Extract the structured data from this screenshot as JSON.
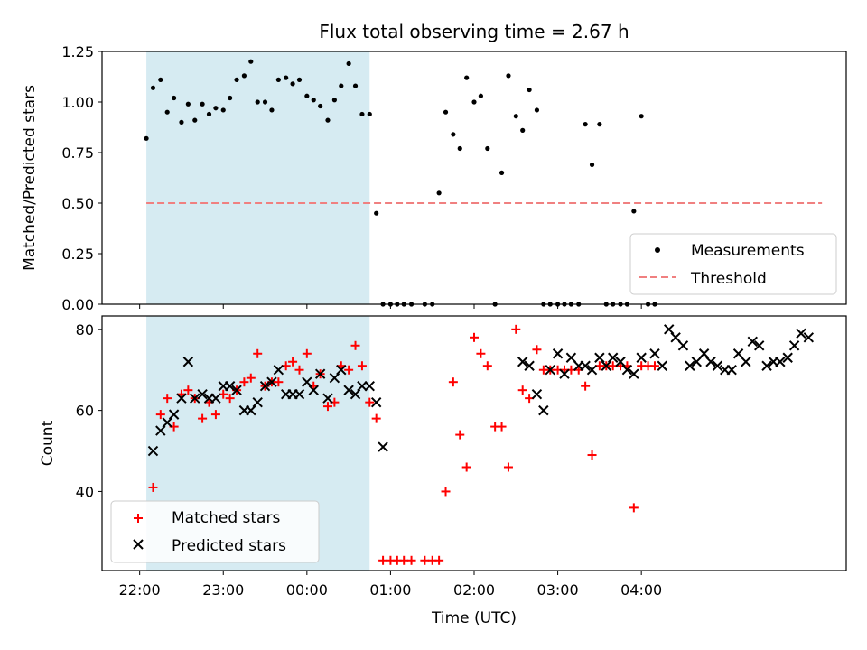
{
  "chart_data": [
    {
      "type": "scatter",
      "title": "Flux total observing time = 2.67 h",
      "xlabel": "",
      "ylabel": "Matched/Predicted stars",
      "ylim": [
        0,
        1.25
      ],
      "yticks": [
        "0.00",
        "0.25",
        "0.50",
        "0.75",
        "1.00",
        "1.25"
      ],
      "shaded_span_hours": [
        22.08,
        24.75
      ],
      "threshold": {
        "name": "Threshold",
        "value": 0.5,
        "x_range_hours": [
          22.08,
          30.16
        ],
        "color": "#f08080"
      },
      "legend": {
        "position": "lower-right",
        "entries": [
          "Measurements",
          "Threshold"
        ]
      },
      "series": [
        {
          "name": "Measurements",
          "color": "#000000",
          "marker": "dot",
          "x_hours": [
            22.08,
            22.16,
            22.25,
            22.33,
            22.41,
            22.5,
            22.58,
            22.66,
            22.75,
            22.83,
            22.91,
            23.0,
            23.08,
            23.16,
            23.25,
            23.33,
            23.41,
            23.5,
            23.58,
            23.66,
            23.75,
            23.83,
            23.91,
            24.0,
            24.08,
            24.16,
            24.25,
            24.33,
            24.41,
            24.5,
            24.58,
            24.66,
            24.75,
            24.83,
            24.91,
            25.0,
            25.08,
            25.16,
            25.25,
            25.41,
            25.5,
            25.58,
            25.66,
            25.75,
            25.83,
            25.91,
            26.0,
            26.08,
            26.16,
            26.25,
            26.33,
            26.41,
            26.5,
            26.58,
            26.66,
            26.75,
            26.83,
            26.91,
            27.0,
            27.08,
            27.16,
            27.25,
            27.33,
            27.41,
            27.5,
            27.58,
            27.66,
            27.75,
            27.83,
            27.91,
            28.0,
            28.08,
            28.16
          ],
          "y": [
            0.82,
            1.07,
            1.11,
            0.95,
            1.02,
            0.9,
            0.99,
            0.91,
            0.99,
            0.94,
            0.97,
            0.96,
            1.02,
            1.11,
            1.13,
            1.2,
            1.0,
            1.0,
            0.96,
            1.11,
            1.12,
            1.09,
            1.11,
            1.03,
            1.01,
            0.98,
            0.91,
            1.01,
            1.08,
            1.19,
            1.08,
            0.94,
            0.94,
            0.45,
            0.0,
            0.0,
            0.0,
            0.0,
            0.0,
            0.0,
            0.0,
            0.55,
            0.95,
            0.84,
            0.77,
            1.12,
            1.0,
            1.03,
            0.77,
            0.0,
            0.65,
            1.13,
            0.93,
            0.86,
            1.06,
            0.96,
            0.0,
            0.0,
            0.0,
            0.0,
            0.0,
            0.0,
            0.89,
            0.69,
            0.89,
            0.0,
            0.0,
            0.0,
            0.0,
            0.46,
            0.93,
            0.0,
            0.0
          ]
        }
      ]
    },
    {
      "type": "scatter",
      "title": "",
      "xlabel": "Time (UTC)",
      "ylabel": "Count",
      "ylim": [
        20.5,
        83.3
      ],
      "yticks": [
        "40",
        "60",
        "80"
      ],
      "xticks": [
        "22:00",
        "23:00",
        "00:00",
        "01:00",
        "02:00",
        "03:00",
        "04:00"
      ],
      "shaded_span_hours": [
        22.08,
        24.75
      ],
      "legend": {
        "position": "lower-left",
        "entries": [
          "Matched stars",
          "Predicted stars"
        ]
      },
      "series": [
        {
          "name": "Matched stars",
          "color": "#ff0000",
          "marker": "plus",
          "x_hours": [
            22.16,
            22.25,
            22.33,
            22.41,
            22.5,
            22.58,
            22.66,
            22.75,
            22.83,
            22.91,
            23.0,
            23.08,
            23.16,
            23.25,
            23.33,
            23.41,
            23.5,
            23.58,
            23.66,
            23.75,
            23.83,
            23.91,
            24.0,
            24.08,
            24.16,
            24.25,
            24.33,
            24.41,
            24.5,
            24.58,
            24.66,
            24.75,
            24.83,
            24.91,
            25.0,
            25.08,
            25.16,
            25.25,
            25.41,
            25.5,
            25.58,
            25.66,
            25.75,
            25.83,
            25.91,
            26.0,
            26.08,
            26.16,
            26.25,
            26.33,
            26.41,
            26.5,
            26.58,
            26.66,
            26.75,
            26.83,
            26.91,
            27.0,
            27.08,
            27.16,
            27.25,
            27.33,
            27.41,
            27.5,
            27.58,
            27.66,
            27.75,
            27.83,
            27.91,
            28.0,
            28.08,
            28.16
          ],
          "y": [
            41,
            59,
            63,
            56,
            64,
            65,
            63,
            58,
            62,
            59,
            64,
            63,
            65,
            67,
            68,
            74,
            66,
            67,
            67,
            71,
            72,
            70,
            74,
            66,
            69,
            61,
            62,
            71,
            70,
            76,
            71,
            62,
            58,
            23,
            23,
            23,
            23,
            23,
            23,
            23,
            23,
            40,
            67,
            54,
            46,
            78,
            74,
            71,
            56,
            56,
            46,
            80,
            65,
            63,
            75,
            70,
            70,
            70,
            70,
            70,
            70,
            66,
            49,
            71,
            71,
            71,
            71,
            71,
            36,
            71,
            71,
            71
          ]
        },
        {
          "name": "Predicted stars",
          "color": "#000000",
          "marker": "x",
          "x_hours": [
            22.16,
            22.25,
            22.33,
            22.41,
            22.5,
            22.58,
            22.66,
            22.75,
            22.83,
            22.91,
            23.0,
            23.08,
            23.16,
            23.25,
            23.33,
            23.41,
            23.5,
            23.58,
            23.66,
            23.75,
            23.83,
            23.91,
            24.0,
            24.08,
            24.16,
            24.25,
            24.33,
            24.41,
            24.5,
            24.58,
            24.66,
            24.75,
            24.83,
            24.91,
            26.58,
            26.66,
            26.75,
            26.83,
            26.91,
            27.0,
            27.08,
            27.16,
            27.25,
            27.33,
            27.41,
            27.5,
            27.58,
            27.66,
            27.75,
            27.83,
            27.91,
            28.0,
            28.16,
            28.25,
            28.33,
            28.41,
            28.5,
            28.58,
            28.66,
            28.75,
            28.83,
            28.91,
            29.0,
            29.08,
            29.16,
            29.25,
            29.33,
            29.41,
            29.5,
            29.58,
            29.66,
            29.75,
            29.83,
            29.91,
            30.0
          ],
          "y": [
            50,
            55,
            57,
            59,
            63,
            72,
            63,
            64,
            63,
            63,
            66,
            66,
            65,
            60,
            60,
            62,
            66,
            67,
            70,
            64,
            64,
            64,
            67,
            65,
            69,
            63,
            68,
            70,
            65,
            64,
            66,
            66,
            62,
            51,
            72,
            71,
            64,
            60,
            70,
            74,
            69,
            73,
            71,
            71,
            70,
            73,
            71,
            73,
            72,
            70,
            69,
            73,
            74,
            71,
            80,
            78,
            76,
            71,
            72,
            74,
            72,
            71,
            70,
            70,
            74,
            72,
            77,
            76,
            71,
            72,
            72,
            73,
            76,
            79,
            78
          ]
        }
      ]
    }
  ]
}
